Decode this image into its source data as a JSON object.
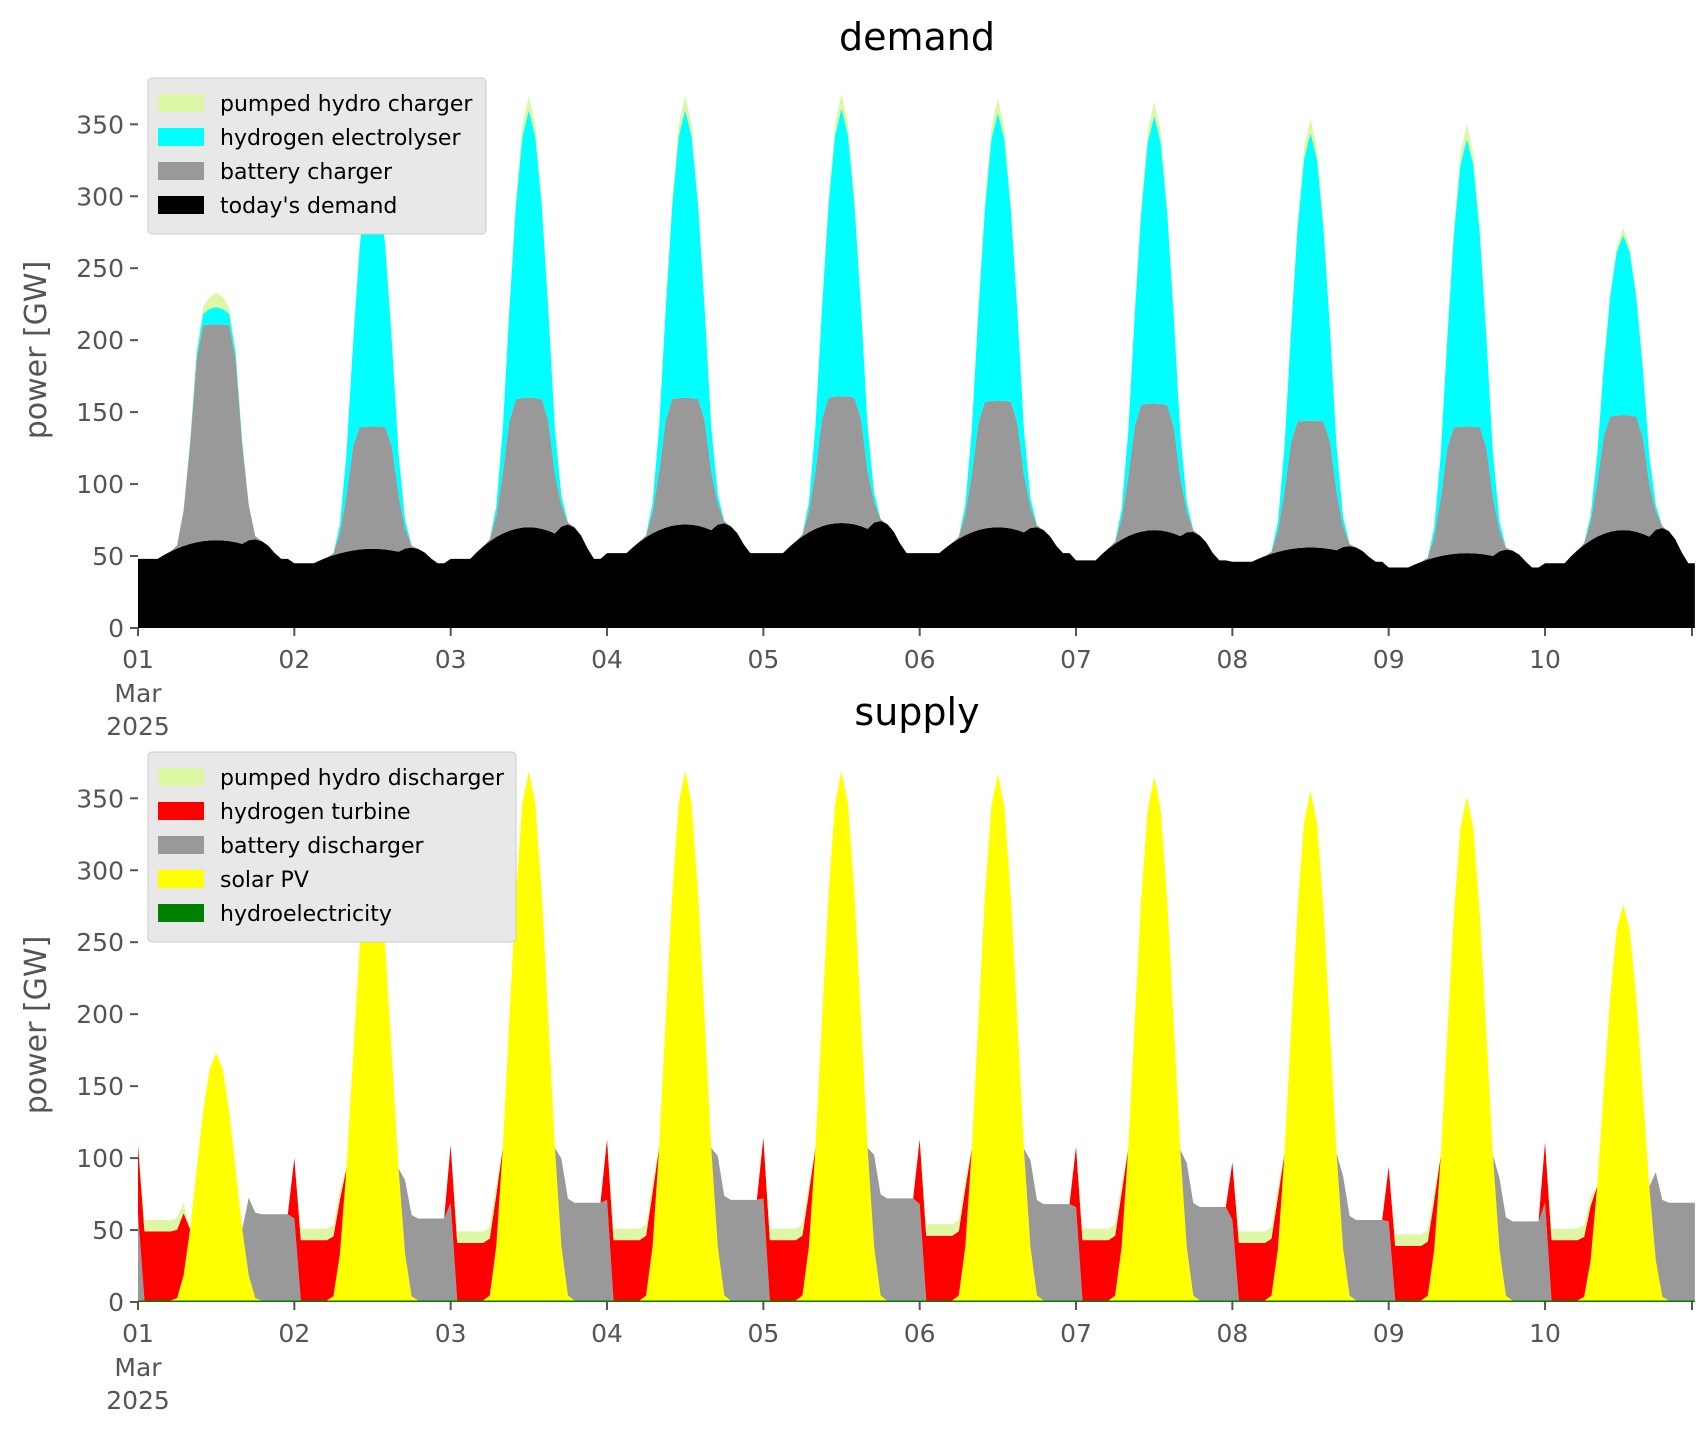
{
  "chart_data": [
    {
      "type": "area",
      "stacked": true,
      "title": "demand",
      "xlabel": "",
      "ylabel": "power [GW]",
      "ylim": [
        0,
        378
      ],
      "xlim_days": [
        1,
        10.94
      ],
      "x_ticks": [
        "01",
        "02",
        "03",
        "04",
        "05",
        "06",
        "07",
        "08",
        "09",
        "10"
      ],
      "x_tick_sub": [
        "Mar",
        "2025"
      ],
      "y_ticks": [
        "0",
        "50",
        "100",
        "150",
        "200",
        "250",
        "300",
        "350"
      ],
      "y_tick_values": [
        0,
        50,
        100,
        150,
        200,
        250,
        300,
        350
      ],
      "grid": false,
      "legend_position": "top-left",
      "series": [
        {
          "name": "today's demand",
          "color": "#000000"
        },
        {
          "name": "battery charger",
          "color": "#999999"
        },
        {
          "name": "hydrogen electrolyser",
          "color": "#00ffff"
        },
        {
          "name": "pumped hydro charger",
          "color": "#ddf7a4"
        }
      ],
      "legend_order": [
        "pumped hydro charger",
        "hydrogen electrolyser",
        "battery charger",
        "today's demand"
      ],
      "daily": [
        {
          "day": 1,
          "battery_peak": 150,
          "electrolyser_peak": 12,
          "pumped_peak": 10
        },
        {
          "day": 2,
          "battery_peak": 85,
          "electrolyser_peak": 185,
          "pumped_peak": 3
        },
        {
          "day": 3,
          "battery_peak": 90,
          "electrolyser_peak": 200,
          "pumped_peak": 10
        },
        {
          "day": 4,
          "battery_peak": 88,
          "electrolyser_peak": 200,
          "pumped_peak": 10
        },
        {
          "day": 5,
          "battery_peak": 88,
          "electrolyser_peak": 200,
          "pumped_peak": 10
        },
        {
          "day": 6,
          "battery_peak": 88,
          "electrolyser_peak": 200,
          "pumped_peak": 10
        },
        {
          "day": 7,
          "battery_peak": 88,
          "electrolyser_peak": 200,
          "pumped_peak": 10
        },
        {
          "day": 8,
          "battery_peak": 88,
          "electrolyser_peak": 200,
          "pumped_peak": 10
        },
        {
          "day": 9,
          "battery_peak": 88,
          "electrolyser_peak": 200,
          "pumped_peak": 10
        },
        {
          "day": 10,
          "battery_peak": 80,
          "electrolyser_peak": 125,
          "pumped_peak": 5
        }
      ],
      "demand_daily_peak": [
        61,
        55,
        70,
        72,
        73,
        70,
        68,
        56,
        52,
        68
      ],
      "demand_daily_trough": [
        48,
        45,
        48,
        52,
        52,
        52,
        47,
        46,
        42,
        45
      ],
      "demand_daily_night": [
        60,
        55,
        70,
        70,
        72,
        67,
        62,
        56,
        55,
        67
      ]
    },
    {
      "type": "area",
      "stacked": true,
      "title": "supply",
      "xlabel": "",
      "ylabel": "power [GW]",
      "ylim": [
        0,
        378
      ],
      "xlim_days": [
        1,
        10.94
      ],
      "x_ticks": [
        "01",
        "02",
        "03",
        "04",
        "05",
        "06",
        "07",
        "08",
        "09",
        "10"
      ],
      "x_tick_sub": [
        "Mar",
        "2025"
      ],
      "y_ticks": [
        "0",
        "50",
        "100",
        "150",
        "200",
        "250",
        "300",
        "350"
      ],
      "y_tick_values": [
        0,
        50,
        100,
        150,
        200,
        250,
        300,
        350
      ],
      "grid": false,
      "legend_position": "top-left",
      "series": [
        {
          "name": "hydroelectricity",
          "color": "#008000"
        },
        {
          "name": "solar PV",
          "color": "#ffff00"
        },
        {
          "name": "battery discharger",
          "color": "#999999"
        },
        {
          "name": "hydrogen turbine",
          "color": "#ff0000"
        },
        {
          "name": "pumped hydro discharger",
          "color": "#ddf7a4"
        }
      ],
      "legend_order": [
        "pumped hydro discharger",
        "hydrogen turbine",
        "battery discharger",
        "solar PV",
        "hydroelectricity"
      ],
      "solar_daily_peak": [
        172,
        318,
        368,
        368,
        368,
        366,
        364,
        354,
        350,
        275
      ],
      "hydrogen_turbine_morning_level": [
        48,
        42,
        40,
        42,
        42,
        45,
        42,
        40,
        38,
        42
      ],
      "battery_evening_peak": [
        60,
        57,
        68,
        70,
        71,
        67,
        65,
        56,
        55,
        68
      ]
    }
  ]
}
